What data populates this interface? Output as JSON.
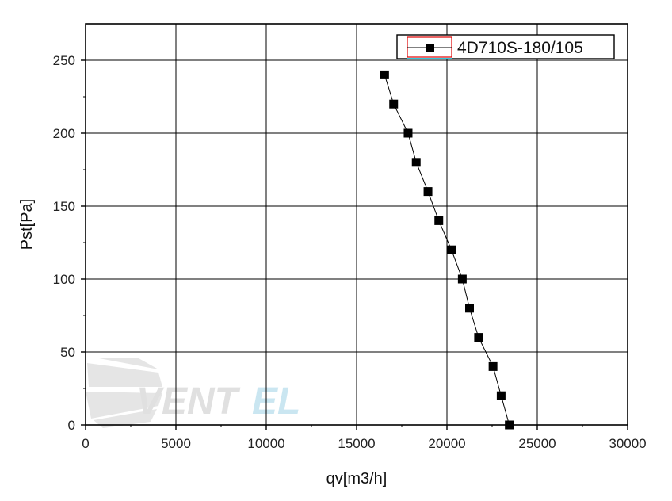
{
  "chart_data": {
    "type": "line",
    "title": "",
    "xlabel": "qv[m3/h]",
    "ylabel": "Pst[Pa]",
    "xlim": [
      0,
      30000
    ],
    "ylim": [
      0,
      275
    ],
    "xticks": [
      0,
      5000,
      10000,
      15000,
      20000,
      25000,
      30000
    ],
    "yticks": [
      0,
      50,
      100,
      150,
      200,
      250
    ],
    "xtick_labels": [
      "0",
      "5000",
      "10000",
      "15000",
      "20000",
      "25000",
      "30000"
    ],
    "ytick_labels": [
      "0",
      "50",
      "100",
      "150",
      "200",
      "250"
    ],
    "grid": true,
    "legend_position": "top-right",
    "series": [
      {
        "name": "4D710S-180/105",
        "color": "#000000",
        "marker": "square",
        "x": [
          16550,
          17050,
          17850,
          18300,
          18950,
          19550,
          20250,
          20850,
          21250,
          21750,
          22550,
          23000,
          23450
        ],
        "y": [
          240,
          220,
          200,
          180,
          160,
          140,
          120,
          100,
          80,
          60,
          40,
          20,
          0
        ]
      }
    ]
  },
  "watermark": {
    "text": "VENTEL",
    "colors": [
      "#c9c9c9",
      "#9fd3e6"
    ]
  }
}
